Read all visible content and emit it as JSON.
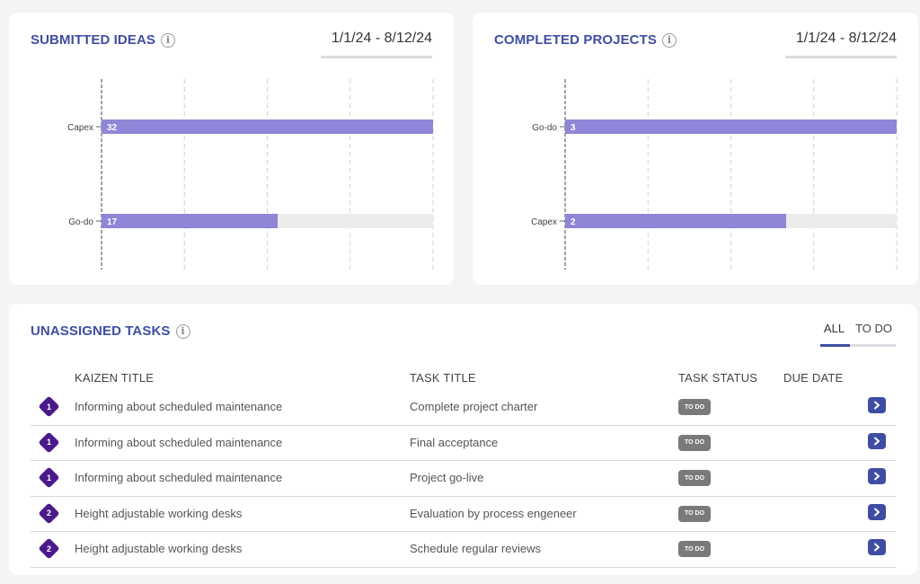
{
  "ideas": {
    "title": "SUBMITTED IDEAS",
    "date_range": "1/1/24 - 8/12/24",
    "bar_color": "#8f86d8",
    "track_color": "#ececec"
  },
  "projects": {
    "title": "COMPLETED PROJECTS",
    "date_range": "1/1/24 - 8/12/24",
    "bar_color": "#8f86d8",
    "track_color": "#ececec"
  },
  "chart_data": [
    {
      "type": "bar",
      "orientation": "horizontal",
      "categories": [
        "Capex",
        "Go-do"
      ],
      "values": [
        32,
        17
      ],
      "xlim": [
        0,
        32
      ],
      "grid": true
    },
    {
      "type": "bar",
      "orientation": "horizontal",
      "categories": [
        "Go-do",
        "Capex"
      ],
      "values": [
        3,
        2
      ],
      "xlim": [
        0,
        3
      ],
      "grid": true
    }
  ],
  "tasks": {
    "title": "UNASSIGNED TASKS",
    "tabs": [
      "ALL",
      "TO DO"
    ],
    "active_tab": "ALL",
    "columns": {
      "kaizen": "KAIZEN TITLE",
      "task": "TASK TITLE",
      "status": "TASK STATUS",
      "due": "DUE DATE"
    },
    "rows": [
      {
        "level": "1",
        "kaizen": "Informing about scheduled maintenance",
        "task": "Complete project charter",
        "status": "TO DO",
        "due": ""
      },
      {
        "level": "1",
        "kaizen": "Informing about scheduled maintenance",
        "task": "Final acceptance",
        "status": "TO DO",
        "due": ""
      },
      {
        "level": "1",
        "kaizen": "Informing about scheduled maintenance",
        "task": "Project go-live",
        "status": "TO DO",
        "due": ""
      },
      {
        "level": "2",
        "kaizen": "Height adjustable working desks",
        "task": "Evaluation by process engeneer",
        "status": "TO DO",
        "due": ""
      },
      {
        "level": "2",
        "kaizen": "Height adjustable working desks",
        "task": "Schedule regular reviews",
        "status": "TO DO",
        "due": ""
      }
    ]
  },
  "icons": {
    "info": "info-icon",
    "row_badge": "diamond-badge-icon",
    "row_action": "chevron-right-icon"
  }
}
